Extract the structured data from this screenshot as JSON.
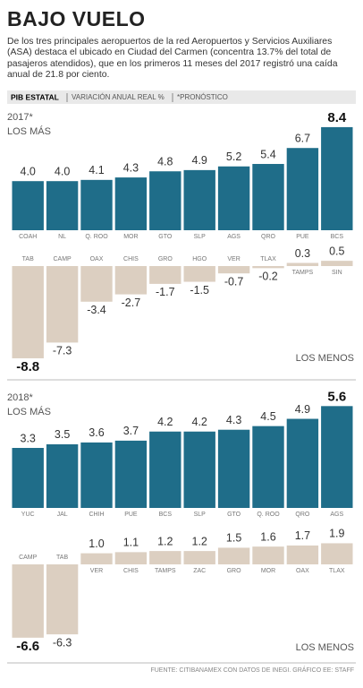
{
  "title": "BAJO VUELO",
  "intro": "De los tres principales aeropuertos de la red Aeropuertos y Servicios Auxiliares (ASA) destaca el ubicado en Ciudad del Carmen (concentra 13.7% del total de pasajeros atendidos), que en los primeros 11 meses del 2017 registró una caída anual de 21.8 por ciento.",
  "strip": {
    "label": "PIB ESTATAL",
    "items": [
      "VARIACIÓN ANUAL REAL %",
      "*PRONÓSTICO"
    ]
  },
  "chart_data": [
    {
      "type": "bar",
      "year": "2017*",
      "label": "LOS MÁS",
      "color": "#1f6d89",
      "categories": [
        "COAH",
        "NL",
        "Q. ROO",
        "MOR",
        "GTO",
        "SLP",
        "AGS",
        "QRO",
        "PUE",
        "BCS"
      ],
      "values": [
        4.0,
        4.0,
        4.1,
        4.3,
        4.8,
        4.9,
        5.2,
        5.4,
        6.7,
        8.4
      ],
      "value_labels": [
        "4.0",
        "4.0",
        "4.1",
        "4.3",
        "4.8",
        "4.9",
        "5.2",
        "5.4",
        "6.7",
        "8.4"
      ]
    },
    {
      "type": "bar",
      "label": "LOS MENOS",
      "color": "#dccfc1",
      "categories": [
        "TAB",
        "CAMP",
        "OAX",
        "CHIS",
        "GRO",
        "HGO",
        "VER",
        "TLAX",
        "TAMPS",
        "SIN"
      ],
      "values": [
        -8.8,
        -7.3,
        -3.4,
        -2.7,
        -1.7,
        -1.5,
        -0.7,
        -0.2,
        0.3,
        0.5
      ],
      "value_labels": [
        "-8.8",
        "-7.3",
        "-3.4",
        "-2.7",
        "-1.7",
        "-1.5",
        "-0.7",
        "-0.2",
        "0.3",
        "0.5"
      ]
    },
    {
      "type": "bar",
      "year": "2018*",
      "label": "LOS MÁS",
      "color": "#1f6d89",
      "categories": [
        "YUC",
        "JAL",
        "CHIH",
        "PUE",
        "BCS",
        "SLP",
        "GTO",
        "Q. ROO",
        "QRO",
        "AGS"
      ],
      "values": [
        3.3,
        3.5,
        3.6,
        3.7,
        4.2,
        4.2,
        4.3,
        4.5,
        4.9,
        5.6
      ],
      "value_labels": [
        "3.3",
        "3.5",
        "3.6",
        "3.7",
        "4.2",
        "4.2",
        "4.3",
        "4.5",
        "4.9",
        "5.6"
      ]
    },
    {
      "type": "bar",
      "label": "LOS MENOS",
      "color": "#dccfc1",
      "categories": [
        "CAMP",
        "TAB",
        "VER",
        "CHIS",
        "TAMPS",
        "ZAC",
        "GRO",
        "MOR",
        "OAX",
        "TLAX"
      ],
      "values": [
        -6.6,
        -6.3,
        1.0,
        1.1,
        1.2,
        1.2,
        1.5,
        1.6,
        1.7,
        1.9
      ],
      "value_labels": [
        "-6.6",
        "-6.3",
        "1.0",
        "1.1",
        "1.2",
        "1.2",
        "1.5",
        "1.6",
        "1.7",
        "1.9"
      ]
    }
  ],
  "source": "FUENTE: CITIBANAMEX CON DATOS DE INEGI. GRÁFICO EE: STAFF"
}
